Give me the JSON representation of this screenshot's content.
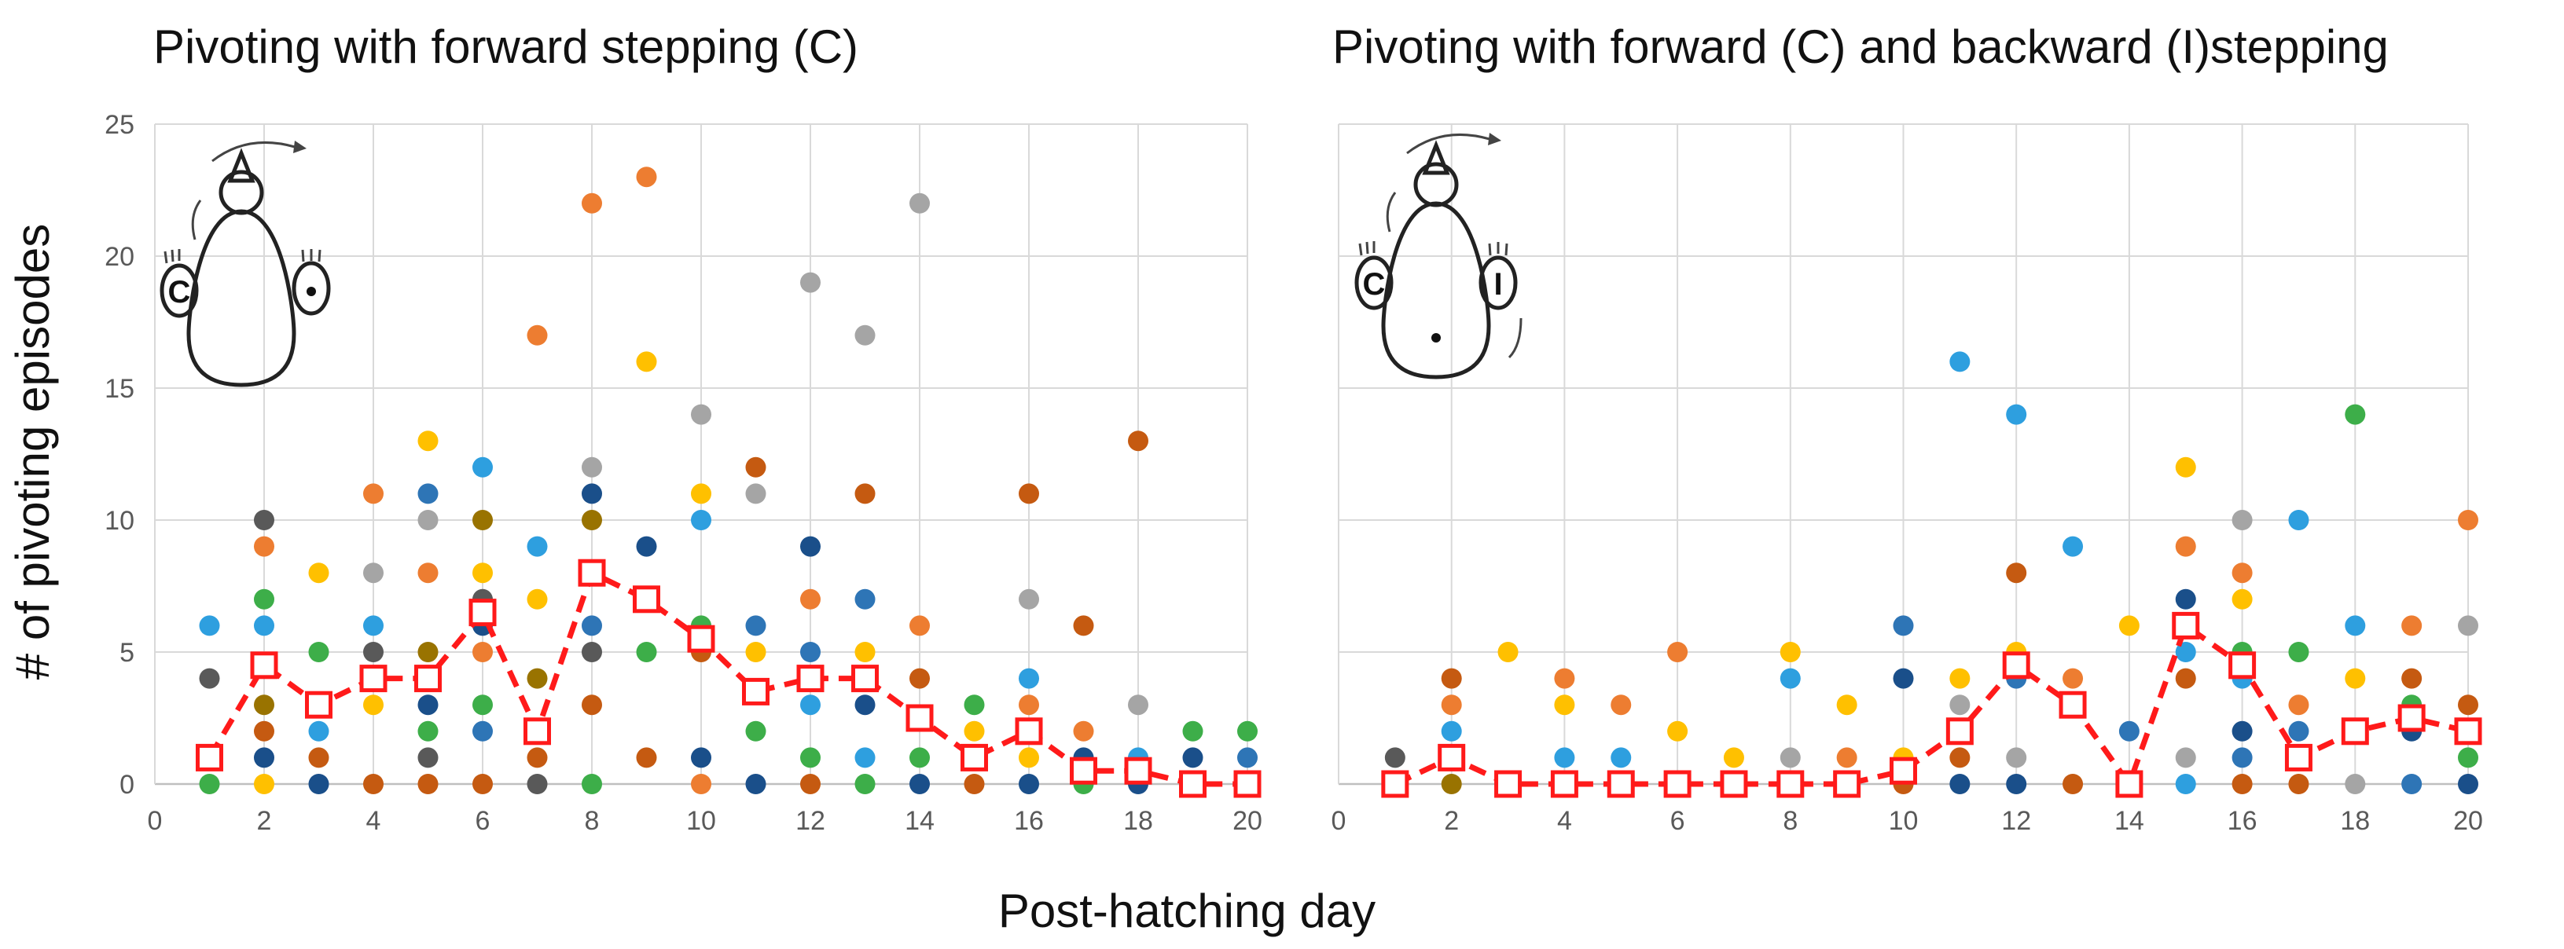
{
  "xlabel": "Post-hatching day",
  "ylabel": "# of pivoting episodes",
  "colors": {
    "mean": "#ff1a1a",
    "palette": [
      "#5b9bd5",
      "#ed7d31",
      "#a5a5a5",
      "#ffc000",
      "#4472c4",
      "#70ad47",
      "#264478",
      "#9e480e",
      "#636363",
      "#997300",
      "#1a9bd9",
      "#3dae49"
    ]
  },
  "chart_data": [
    {
      "type": "scatter",
      "title": "Pivoting with forward stepping (C)",
      "xlim": [
        0,
        20
      ],
      "ylim": [
        0,
        25
      ],
      "xticks": [
        0,
        2,
        4,
        6,
        8,
        10,
        12,
        14,
        16,
        18,
        20
      ],
      "yticks": [
        0,
        5,
        10,
        15,
        20,
        25
      ],
      "inset_labels": [
        "C"
      ],
      "points": [
        {
          "x": 1,
          "y": 6,
          "c": "#2e9fdf"
        },
        {
          "x": 1,
          "y": 4,
          "c": "#595959"
        },
        {
          "x": 1,
          "y": 1,
          "c": "#6b8e23"
        },
        {
          "x": 1,
          "y": 0,
          "c": "#3dae49"
        },
        {
          "x": 2,
          "y": 10,
          "c": "#595959"
        },
        {
          "x": 2,
          "y": 9,
          "c": "#ed7d31"
        },
        {
          "x": 2,
          "y": 7,
          "c": "#3dae49"
        },
        {
          "x": 2,
          "y": 6,
          "c": "#2e9fdf"
        },
        {
          "x": 2,
          "y": 3,
          "c": "#997300"
        },
        {
          "x": 2,
          "y": 2,
          "c": "#c55a11"
        },
        {
          "x": 2,
          "y": 1,
          "c": "#1a4f8a"
        },
        {
          "x": 2,
          "y": 0,
          "c": "#ffc000"
        },
        {
          "x": 3,
          "y": 8,
          "c": "#ffc000"
        },
        {
          "x": 3,
          "y": 5,
          "c": "#3dae49"
        },
        {
          "x": 3,
          "y": 3,
          "c": "#3dae49"
        },
        {
          "x": 3,
          "y": 2,
          "c": "#2e9fdf"
        },
        {
          "x": 3,
          "y": 1,
          "c": "#c55a11"
        },
        {
          "x": 3,
          "y": 0,
          "c": "#1a4f8a"
        },
        {
          "x": 4,
          "y": 11,
          "c": "#ed7d31"
        },
        {
          "x": 4,
          "y": 8,
          "c": "#a5a5a5"
        },
        {
          "x": 4,
          "y": 6,
          "c": "#2e9fdf"
        },
        {
          "x": 4,
          "y": 5,
          "c": "#595959"
        },
        {
          "x": 4,
          "y": 4,
          "c": "#997300"
        },
        {
          "x": 4,
          "y": 3,
          "c": "#ffc000"
        },
        {
          "x": 4,
          "y": 0,
          "c": "#c55a11"
        },
        {
          "x": 5,
          "y": 13,
          "c": "#ffc000"
        },
        {
          "x": 5,
          "y": 11,
          "c": "#2e75b6"
        },
        {
          "x": 5,
          "y": 10,
          "c": "#a5a5a5"
        },
        {
          "x": 5,
          "y": 8,
          "c": "#ed7d31"
        },
        {
          "x": 5,
          "y": 5,
          "c": "#997300"
        },
        {
          "x": 5,
          "y": 3,
          "c": "#1a4f8a"
        },
        {
          "x": 5,
          "y": 2,
          "c": "#3dae49"
        },
        {
          "x": 5,
          "y": 1,
          "c": "#595959"
        },
        {
          "x": 5,
          "y": 0,
          "c": "#c55a11"
        },
        {
          "x": 6,
          "y": 12,
          "c": "#2e9fdf"
        },
        {
          "x": 6,
          "y": 10,
          "c": "#997300"
        },
        {
          "x": 6,
          "y": 8,
          "c": "#ffc000"
        },
        {
          "x": 6,
          "y": 7,
          "c": "#595959"
        },
        {
          "x": 6,
          "y": 6,
          "c": "#1a4f8a"
        },
        {
          "x": 6,
          "y": 5,
          "c": "#ed7d31"
        },
        {
          "x": 6,
          "y": 3,
          "c": "#3dae49"
        },
        {
          "x": 6,
          "y": 2,
          "c": "#2e75b6"
        },
        {
          "x": 6,
          "y": 0,
          "c": "#c55a11"
        },
        {
          "x": 7,
          "y": 17,
          "c": "#ed7d31"
        },
        {
          "x": 7,
          "y": 9,
          "c": "#2e9fdf"
        },
        {
          "x": 7,
          "y": 7,
          "c": "#ffc000"
        },
        {
          "x": 7,
          "y": 4,
          "c": "#997300"
        },
        {
          "x": 7,
          "y": 2,
          "c": "#3dae49"
        },
        {
          "x": 7,
          "y": 1,
          "c": "#c55a11"
        },
        {
          "x": 7,
          "y": 0,
          "c": "#595959"
        },
        {
          "x": 8,
          "y": 22,
          "c": "#ed7d31"
        },
        {
          "x": 8,
          "y": 12,
          "c": "#a5a5a5"
        },
        {
          "x": 8,
          "y": 11,
          "c": "#1a4f8a"
        },
        {
          "x": 8,
          "y": 10,
          "c": "#997300"
        },
        {
          "x": 8,
          "y": 8,
          "c": "#ffc000"
        },
        {
          "x": 8,
          "y": 6,
          "c": "#2e75b6"
        },
        {
          "x": 8,
          "y": 5,
          "c": "#595959"
        },
        {
          "x": 8,
          "y": 3,
          "c": "#c55a11"
        },
        {
          "x": 8,
          "y": 0,
          "c": "#3dae49"
        },
        {
          "x": 9,
          "y": 23,
          "c": "#ed7d31"
        },
        {
          "x": 9,
          "y": 16,
          "c": "#ffc000"
        },
        {
          "x": 9,
          "y": 9,
          "c": "#1a4f8a"
        },
        {
          "x": 9,
          "y": 7,
          "c": "#2e9fdf"
        },
        {
          "x": 9,
          "y": 5,
          "c": "#3dae49"
        },
        {
          "x": 9,
          "y": 1,
          "c": "#c55a11"
        },
        {
          "x": 10,
          "y": 14,
          "c": "#a5a5a5"
        },
        {
          "x": 10,
          "y": 11,
          "c": "#ffc000"
        },
        {
          "x": 10,
          "y": 10,
          "c": "#2e9fdf"
        },
        {
          "x": 10,
          "y": 6,
          "c": "#3dae49"
        },
        {
          "x": 10,
          "y": 5,
          "c": "#c55a11"
        },
        {
          "x": 10,
          "y": 1,
          "c": "#1a4f8a"
        },
        {
          "x": 10,
          "y": 0,
          "c": "#ed7d31"
        },
        {
          "x": 11,
          "y": 12,
          "c": "#c55a11"
        },
        {
          "x": 11,
          "y": 11,
          "c": "#a5a5a5"
        },
        {
          "x": 11,
          "y": 6,
          "c": "#2e75b6"
        },
        {
          "x": 11,
          "y": 5,
          "c": "#ffc000"
        },
        {
          "x": 11,
          "y": 2,
          "c": "#3dae49"
        },
        {
          "x": 11,
          "y": 0,
          "c": "#1a4f8a"
        },
        {
          "x": 12,
          "y": 19,
          "c": "#a5a5a5"
        },
        {
          "x": 12,
          "y": 9,
          "c": "#1a4f8a"
        },
        {
          "x": 12,
          "y": 7,
          "c": "#ed7d31"
        },
        {
          "x": 12,
          "y": 5,
          "c": "#2e75b6"
        },
        {
          "x": 12,
          "y": 3,
          "c": "#2e9fdf"
        },
        {
          "x": 12,
          "y": 1,
          "c": "#3dae49"
        },
        {
          "x": 12,
          "y": 0,
          "c": "#c55a11"
        },
        {
          "x": 13,
          "y": 17,
          "c": "#a5a5a5"
        },
        {
          "x": 13,
          "y": 11,
          "c": "#c55a11"
        },
        {
          "x": 13,
          "y": 7,
          "c": "#2e75b6"
        },
        {
          "x": 13,
          "y": 5,
          "c": "#ffc000"
        },
        {
          "x": 13,
          "y": 3,
          "c": "#1a4f8a"
        },
        {
          "x": 13,
          "y": 1,
          "c": "#2e9fdf"
        },
        {
          "x": 13,
          "y": 0,
          "c": "#3dae49"
        },
        {
          "x": 14,
          "y": 22,
          "c": "#a5a5a5"
        },
        {
          "x": 14,
          "y": 6,
          "c": "#ed7d31"
        },
        {
          "x": 14,
          "y": 4,
          "c": "#c55a11"
        },
        {
          "x": 14,
          "y": 1,
          "c": "#3dae49"
        },
        {
          "x": 14,
          "y": 0,
          "c": "#1a4f8a"
        },
        {
          "x": 15,
          "y": 3,
          "c": "#3dae49"
        },
        {
          "x": 15,
          "y": 2,
          "c": "#ffc000"
        },
        {
          "x": 15,
          "y": 0,
          "c": "#c55a11"
        },
        {
          "x": 16,
          "y": 11,
          "c": "#c55a11"
        },
        {
          "x": 16,
          "y": 7,
          "c": "#a5a5a5"
        },
        {
          "x": 16,
          "y": 4,
          "c": "#2e9fdf"
        },
        {
          "x": 16,
          "y": 3,
          "c": "#ed7d31"
        },
        {
          "x": 16,
          "y": 1,
          "c": "#ffc000"
        },
        {
          "x": 16,
          "y": 0,
          "c": "#1a4f8a"
        },
        {
          "x": 17,
          "y": 6,
          "c": "#c55a11"
        },
        {
          "x": 17,
          "y": 2,
          "c": "#ed7d31"
        },
        {
          "x": 17,
          "y": 1,
          "c": "#1a4f8a"
        },
        {
          "x": 17,
          "y": 0,
          "c": "#3dae49"
        },
        {
          "x": 18,
          "y": 13,
          "c": "#c55a11"
        },
        {
          "x": 18,
          "y": 3,
          "c": "#a5a5a5"
        },
        {
          "x": 18,
          "y": 1,
          "c": "#2e9fdf"
        },
        {
          "x": 18,
          "y": 0,
          "c": "#1a4f8a"
        },
        {
          "x": 19,
          "y": 2,
          "c": "#3dae49"
        },
        {
          "x": 19,
          "y": 1,
          "c": "#1a4f8a"
        },
        {
          "x": 19,
          "y": 0,
          "c": "#c55a11"
        },
        {
          "x": 20,
          "y": 2,
          "c": "#3dae49"
        },
        {
          "x": 20,
          "y": 1,
          "c": "#2e75b6"
        },
        {
          "x": 20,
          "y": 0,
          "c": "#c55a11"
        }
      ],
      "mean_series": {
        "name": "mean",
        "x": [
          1,
          2,
          3,
          4,
          5,
          6,
          7,
          8,
          9,
          10,
          11,
          12,
          13,
          14,
          15,
          16,
          17,
          18,
          19,
          20
        ],
        "y": [
          1,
          4.5,
          3,
          4,
          4,
          6.5,
          2,
          8,
          7,
          5.5,
          3.5,
          4,
          4,
          2.5,
          1,
          2,
          0.5,
          0.5,
          0,
          0
        ]
      }
    },
    {
      "type": "scatter",
      "title": "Pivoting with forward (C) and backward (I)stepping",
      "xlim": [
        0,
        20
      ],
      "ylim": [
        0,
        25
      ],
      "xticks": [
        0,
        2,
        4,
        6,
        8,
        10,
        12,
        14,
        16,
        18,
        20
      ],
      "yticks": [
        0,
        5,
        10,
        15,
        20,
        25
      ],
      "inset_labels": [
        "C",
        "I"
      ],
      "points": [
        {
          "x": 1,
          "y": 1,
          "c": "#595959"
        },
        {
          "x": 1,
          "y": 0,
          "c": "#3dae49"
        },
        {
          "x": 2,
          "y": 4,
          "c": "#c55a11"
        },
        {
          "x": 2,
          "y": 3,
          "c": "#ed7d31"
        },
        {
          "x": 2,
          "y": 2,
          "c": "#2e9fdf"
        },
        {
          "x": 2,
          "y": 1,
          "c": "#1a4f8a"
        },
        {
          "x": 2,
          "y": 0,
          "c": "#997300"
        },
        {
          "x": 3,
          "y": 5,
          "c": "#ffc000"
        },
        {
          "x": 3,
          "y": 0,
          "c": "#c55a11"
        },
        {
          "x": 4,
          "y": 4,
          "c": "#ed7d31"
        },
        {
          "x": 4,
          "y": 3,
          "c": "#ffc000"
        },
        {
          "x": 4,
          "y": 1,
          "c": "#2e9fdf"
        },
        {
          "x": 4,
          "y": 0,
          "c": "#3dae49"
        },
        {
          "x": 5,
          "y": 3,
          "c": "#ed7d31"
        },
        {
          "x": 5,
          "y": 1,
          "c": "#2e9fdf"
        },
        {
          "x": 5,
          "y": 0,
          "c": "#c55a11"
        },
        {
          "x": 6,
          "y": 5,
          "c": "#ed7d31"
        },
        {
          "x": 6,
          "y": 2,
          "c": "#ffc000"
        },
        {
          "x": 6,
          "y": 0,
          "c": "#c55a11"
        },
        {
          "x": 7,
          "y": 1,
          "c": "#ffc000"
        },
        {
          "x": 7,
          "y": 0,
          "c": "#3dae49"
        },
        {
          "x": 8,
          "y": 5,
          "c": "#ffc000"
        },
        {
          "x": 8,
          "y": 4,
          "c": "#2e9fdf"
        },
        {
          "x": 8,
          "y": 1,
          "c": "#a5a5a5"
        },
        {
          "x": 8,
          "y": 0,
          "c": "#c55a11"
        },
        {
          "x": 9,
          "y": 3,
          "c": "#ffc000"
        },
        {
          "x": 9,
          "y": 1,
          "c": "#ed7d31"
        },
        {
          "x": 9,
          "y": 0,
          "c": "#c55a11"
        },
        {
          "x": 10,
          "y": 6,
          "c": "#2e75b6"
        },
        {
          "x": 10,
          "y": 4,
          "c": "#1a4f8a"
        },
        {
          "x": 10,
          "y": 1,
          "c": "#ffc000"
        },
        {
          "x": 10,
          "y": 0,
          "c": "#c55a11"
        },
        {
          "x": 11,
          "y": 16,
          "c": "#2e9fdf"
        },
        {
          "x": 11,
          "y": 4,
          "c": "#ffc000"
        },
        {
          "x": 11,
          "y": 3,
          "c": "#a5a5a5"
        },
        {
          "x": 11,
          "y": 1,
          "c": "#c55a11"
        },
        {
          "x": 11,
          "y": 0,
          "c": "#1a4f8a"
        },
        {
          "x": 12,
          "y": 14,
          "c": "#2e9fdf"
        },
        {
          "x": 12,
          "y": 8,
          "c": "#c55a11"
        },
        {
          "x": 12,
          "y": 5,
          "c": "#ffc000"
        },
        {
          "x": 12,
          "y": 4,
          "c": "#2e75b6"
        },
        {
          "x": 12,
          "y": 1,
          "c": "#a5a5a5"
        },
        {
          "x": 12,
          "y": 0,
          "c": "#1a4f8a"
        },
        {
          "x": 13,
          "y": 9,
          "c": "#2e9fdf"
        },
        {
          "x": 13,
          "y": 4,
          "c": "#ed7d31"
        },
        {
          "x": 13,
          "y": 3,
          "c": "#1a4f8a"
        },
        {
          "x": 13,
          "y": 0,
          "c": "#c55a11"
        },
        {
          "x": 14,
          "y": 6,
          "c": "#ffc000"
        },
        {
          "x": 14,
          "y": 2,
          "c": "#2e75b6"
        },
        {
          "x": 14,
          "y": 0,
          "c": "#c55a11"
        },
        {
          "x": 15,
          "y": 12,
          "c": "#ffc000"
        },
        {
          "x": 15,
          "y": 9,
          "c": "#ed7d31"
        },
        {
          "x": 15,
          "y": 7,
          "c": "#1a4f8a"
        },
        {
          "x": 15,
          "y": 5,
          "c": "#2e9fdf"
        },
        {
          "x": 15,
          "y": 4,
          "c": "#c55a11"
        },
        {
          "x": 15,
          "y": 1,
          "c": "#a5a5a5"
        },
        {
          "x": 15,
          "y": 0,
          "c": "#2e9fdf"
        },
        {
          "x": 16,
          "y": 10,
          "c": "#a5a5a5"
        },
        {
          "x": 16,
          "y": 8,
          "c": "#ed7d31"
        },
        {
          "x": 16,
          "y": 7,
          "c": "#ffc000"
        },
        {
          "x": 16,
          "y": 5,
          "c": "#3dae49"
        },
        {
          "x": 16,
          "y": 4,
          "c": "#2e9fdf"
        },
        {
          "x": 16,
          "y": 2,
          "c": "#1a4f8a"
        },
        {
          "x": 16,
          "y": 1,
          "c": "#2e75b6"
        },
        {
          "x": 16,
          "y": 0,
          "c": "#c55a11"
        },
        {
          "x": 17,
          "y": 10,
          "c": "#2e9fdf"
        },
        {
          "x": 17,
          "y": 5,
          "c": "#3dae49"
        },
        {
          "x": 17,
          "y": 3,
          "c": "#ed7d31"
        },
        {
          "x": 17,
          "y": 2,
          "c": "#2e75b6"
        },
        {
          "x": 17,
          "y": 0,
          "c": "#c55a11"
        },
        {
          "x": 18,
          "y": 14,
          "c": "#3dae49"
        },
        {
          "x": 18,
          "y": 6,
          "c": "#2e9fdf"
        },
        {
          "x": 18,
          "y": 4,
          "c": "#ffc000"
        },
        {
          "x": 18,
          "y": 2,
          "c": "#c55a11"
        },
        {
          "x": 18,
          "y": 0,
          "c": "#a5a5a5"
        },
        {
          "x": 19,
          "y": 6,
          "c": "#ed7d31"
        },
        {
          "x": 19,
          "y": 4,
          "c": "#c55a11"
        },
        {
          "x": 19,
          "y": 3,
          "c": "#3dae49"
        },
        {
          "x": 19,
          "y": 2,
          "c": "#1a4f8a"
        },
        {
          "x": 19,
          "y": 0,
          "c": "#2e75b6"
        },
        {
          "x": 20,
          "y": 10,
          "c": "#ed7d31"
        },
        {
          "x": 20,
          "y": 6,
          "c": "#a5a5a5"
        },
        {
          "x": 20,
          "y": 3,
          "c": "#c55a11"
        },
        {
          "x": 20,
          "y": 1,
          "c": "#3dae49"
        },
        {
          "x": 20,
          "y": 0,
          "c": "#1a4f8a"
        }
      ],
      "mean_series": {
        "name": "mean",
        "x": [
          1,
          2,
          3,
          4,
          5,
          6,
          7,
          8,
          9,
          10,
          11,
          12,
          13,
          14,
          15,
          16,
          17,
          18,
          19,
          20
        ],
        "y": [
          0,
          1,
          0,
          0,
          0,
          0,
          0,
          0,
          0,
          0.5,
          2,
          4.5,
          3,
          0,
          6,
          4.5,
          1,
          2,
          2.5,
          2
        ]
      }
    }
  ]
}
